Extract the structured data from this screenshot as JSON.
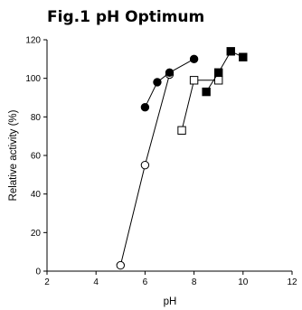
{
  "chart_data": {
    "type": "scatter",
    "title": "Fig.1 pH Optimum",
    "xlabel": "pH",
    "ylabel": "Relative activity (%)",
    "xlim": [
      2,
      12
    ],
    "ylim": [
      0,
      120
    ],
    "xticks": [
      2,
      4,
      6,
      8,
      10,
      12
    ],
    "yticks": [
      0,
      20,
      40,
      60,
      80,
      100,
      120
    ],
    "grid": false,
    "legend": "none",
    "series": [
      {
        "marker": "open-circle",
        "fill": "#ffffff",
        "stroke": "#000000",
        "connected": true,
        "x": [
          5.0,
          6.0,
          7.0
        ],
        "y": [
          3,
          55,
          102
        ]
      },
      {
        "marker": "filled-circle",
        "fill": "#000000",
        "stroke": "#000000",
        "connected": true,
        "x": [
          6.0,
          6.5,
          7.0,
          8.0
        ],
        "y": [
          85,
          98,
          103,
          110
        ]
      },
      {
        "marker": "open-square",
        "fill": "#ffffff",
        "stroke": "#000000",
        "connected": true,
        "x": [
          7.5,
          8.0,
          9.0
        ],
        "y": [
          73,
          99,
          99
        ]
      },
      {
        "marker": "filled-square",
        "fill": "#000000",
        "stroke": "#000000",
        "connected": true,
        "x": [
          8.5,
          9.0,
          9.5,
          10.0
        ],
        "y": [
          93,
          103,
          114,
          111
        ]
      }
    ]
  }
}
